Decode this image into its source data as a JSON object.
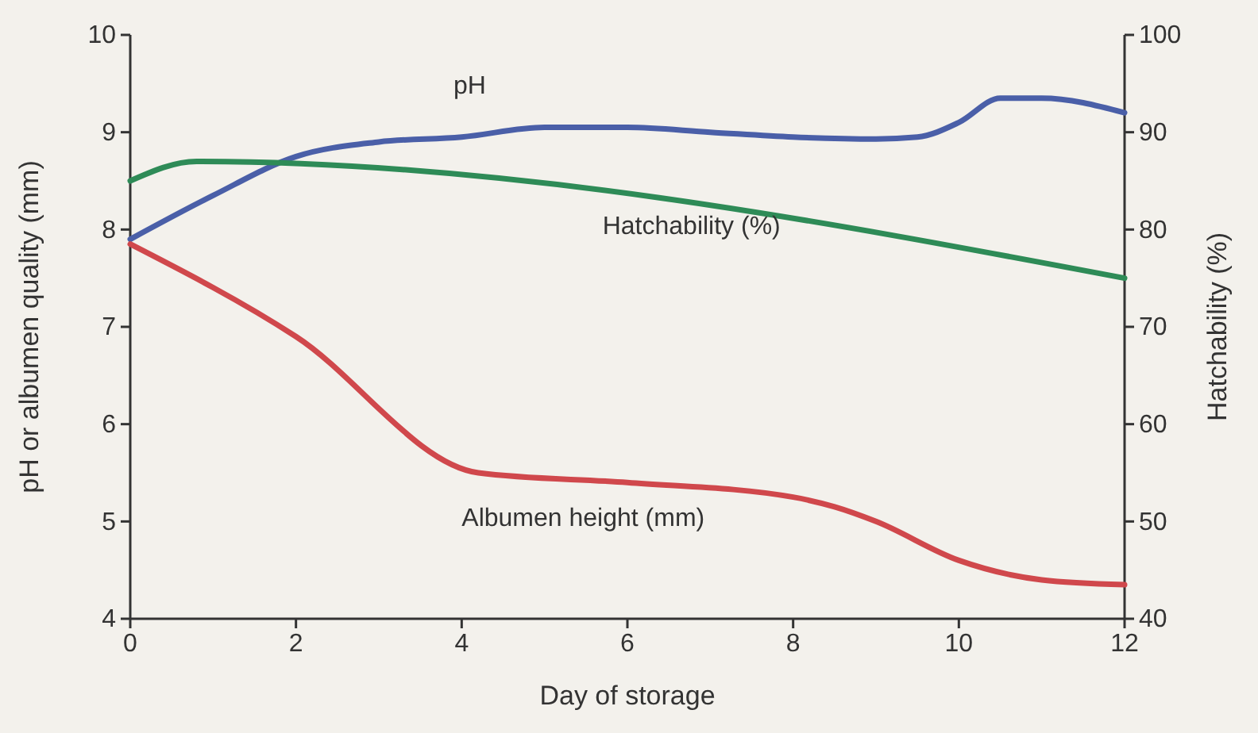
{
  "chart_data": {
    "type": "line",
    "xlabel": "Day of storage",
    "ylabel": "pH or albumen quality (mm)",
    "y2label": "Hatchability (%)",
    "xlim": [
      0,
      12
    ],
    "xticks": [
      0,
      2,
      4,
      6,
      8,
      10,
      12
    ],
    "ylim": [
      4,
      10
    ],
    "yticks": [
      4,
      5,
      6,
      7,
      8,
      9,
      10
    ],
    "y2lim": [
      40,
      100
    ],
    "y2ticks": [
      40,
      50,
      60,
      70,
      80,
      90,
      100
    ],
    "grid": false,
    "marker": "none",
    "line_style": "solid",
    "series": [
      {
        "name": "pH",
        "color": "#4a5fa8",
        "x": [
          0,
          1,
          2,
          3,
          4,
          5,
          6,
          7,
          8,
          9,
          9.5,
          10,
          10.5,
          11,
          12
        ],
        "values": [
          7.9,
          8.35,
          8.75,
          8.9,
          8.95,
          9.05,
          9.05,
          9.0,
          8.95,
          8.93,
          8.95,
          9.1,
          9.35,
          9.35,
          9.2
        ]
      },
      {
        "name": "Hatchability (%)",
        "color": "#2e8b57",
        "axis": "y2",
        "x": [
          0,
          0.8,
          12
        ],
        "values": [
          85,
          87,
          75
        ]
      },
      {
        "name": "Albumen height (mm)",
        "color": "#d0484c",
        "x": [
          0,
          2,
          4.2,
          6,
          8,
          8.5,
          9,
          10,
          11,
          12
        ],
        "values": [
          7.85,
          6.9,
          5.5,
          5.4,
          5.25,
          5.15,
          5.0,
          4.6,
          4.4,
          4.35
        ]
      }
    ]
  }
}
